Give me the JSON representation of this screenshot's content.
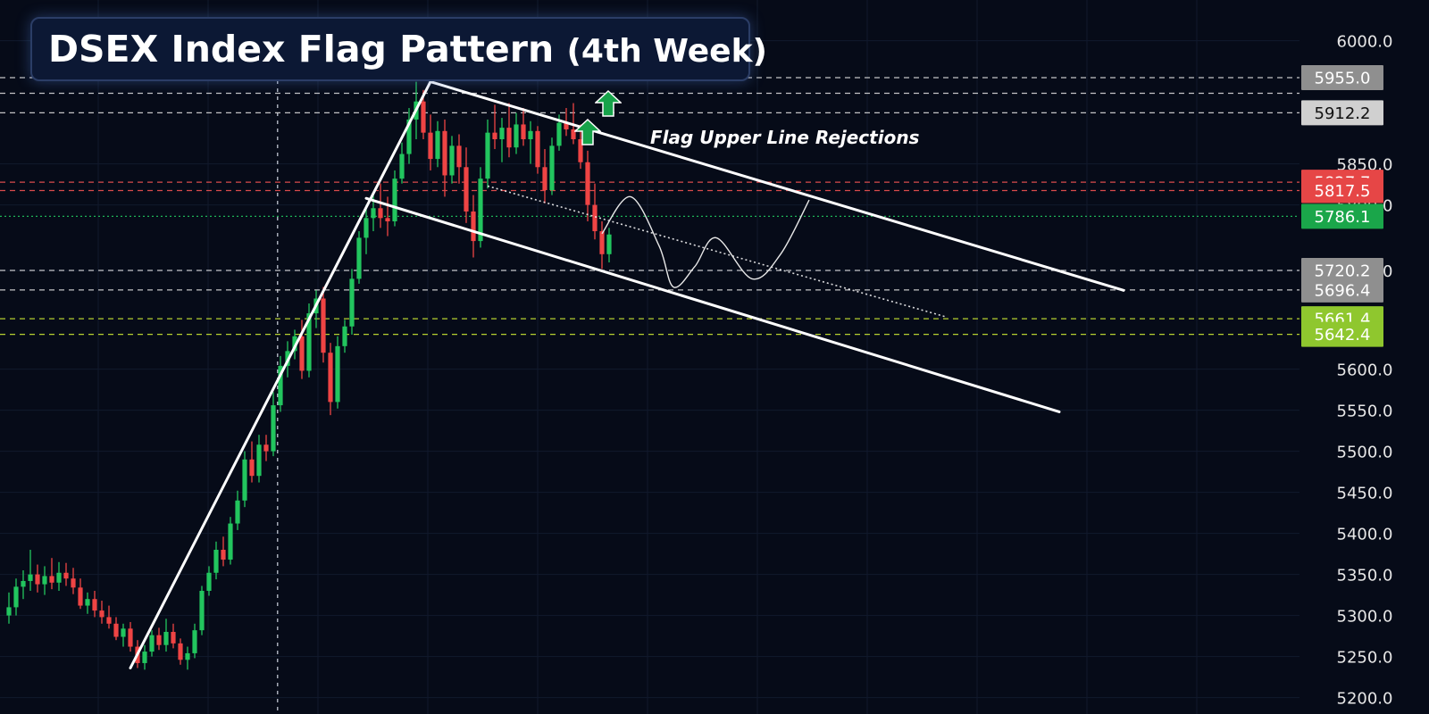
{
  "title": {
    "main": "DSEX Index Flag Pattern",
    "sub": "(4th Week)"
  },
  "annotation": "Flag Upper Line Rejections",
  "icons": {
    "arrow": "up-arrow-icon",
    "arrow_color": "#17a34a"
  },
  "colors": {
    "background": "#060b18",
    "bull": "#22c55e",
    "bear": "#ef4444",
    "white_lines": "#ffffff",
    "red_level": "#f05252",
    "green_level": "#22c55e",
    "yellow_level": "#c8e632",
    "gray_level": "#d9d9d9"
  },
  "chart_data": {
    "type": "candlestick",
    "title": "DSEX Index Flag Pattern (4th Week)",
    "ylim": [
      5180,
      6030
    ],
    "y_ticks": [
      5200,
      5250,
      5300,
      5350,
      5400,
      5450,
      5500,
      5550,
      5600,
      5720,
      5800,
      5850,
      6000
    ],
    "y_tick_labels": [
      "5200.0",
      "5250.0",
      "5300.0",
      "5350.0",
      "5400.0",
      "5450.0",
      "5500.0",
      "5550.0",
      "5600.0",
      "5720.0",
      "5800.0",
      "5850.0",
      "6000.0"
    ],
    "price_labels": [
      {
        "value": 5955.0,
        "text": "5955.0",
        "color": "#8f8f8f",
        "text_color": "#ffffff"
      },
      {
        "value": 5912.2,
        "text": "5912.2",
        "color": "#d0d0d0",
        "text_color": "#111111"
      },
      {
        "value": 5827.7,
        "text": "5827.7",
        "color": "#e64646",
        "text_color": "#ffffff"
      },
      {
        "value": 5817.5,
        "text": "5817.5",
        "color": "#e64646",
        "text_color": "#ffffff"
      },
      {
        "value": 5786.1,
        "text": "5786.1",
        "color": "#1aa64a",
        "text_color": "#ffffff"
      },
      {
        "value": 5720.2,
        "text": "5720.2",
        "color": "#8f8f8f",
        "text_color": "#ffffff"
      },
      {
        "value": 5696.4,
        "text": "5696.4",
        "color": "#8f8f8f",
        "text_color": "#ffffff"
      },
      {
        "value": 5661.4,
        "text": "5661.4",
        "color": "#8fc72e",
        "text_color": "#ffffff"
      },
      {
        "value": 5642.4,
        "text": "5642.4",
        "color": "#8fc72e",
        "text_color": "#ffffff"
      }
    ],
    "levels": [
      {
        "value": 5955.0,
        "style": "dashed",
        "color": "#d9d9d9"
      },
      {
        "value": 5936.0,
        "style": "dashed",
        "color": "#d9d9d9"
      },
      {
        "value": 5912.2,
        "style": "dashed",
        "color": "#d9d9d9"
      },
      {
        "value": 5827.7,
        "style": "dashed",
        "color": "#f05252"
      },
      {
        "value": 5817.5,
        "style": "dashed",
        "color": "#f05252"
      },
      {
        "value": 5786.1,
        "style": "dotted",
        "color": "#22c55e"
      },
      {
        "value": 5720.2,
        "style": "dashed",
        "color": "#d9d9d9"
      },
      {
        "value": 5696.4,
        "style": "dashed",
        "color": "#d9d9d9"
      },
      {
        "value": 5661.4,
        "style": "dashed",
        "color": "#c8e632"
      },
      {
        "value": 5642.4,
        "style": "dashed",
        "color": "#c8e632"
      }
    ],
    "candles": [
      {
        "o": 5300,
        "h": 5328,
        "l": 5290,
        "c": 5310
      },
      {
        "o": 5310,
        "h": 5345,
        "l": 5300,
        "c": 5335
      },
      {
        "o": 5335,
        "h": 5355,
        "l": 5320,
        "c": 5342
      },
      {
        "o": 5342,
        "h": 5380,
        "l": 5330,
        "c": 5350
      },
      {
        "o": 5350,
        "h": 5362,
        "l": 5328,
        "c": 5338
      },
      {
        "o": 5338,
        "h": 5360,
        "l": 5325,
        "c": 5348
      },
      {
        "o": 5348,
        "h": 5370,
        "l": 5332,
        "c": 5340
      },
      {
        "o": 5340,
        "h": 5365,
        "l": 5330,
        "c": 5352
      },
      {
        "o": 5352,
        "h": 5364,
        "l": 5336,
        "c": 5345
      },
      {
        "o": 5345,
        "h": 5358,
        "l": 5326,
        "c": 5334
      },
      {
        "o": 5334,
        "h": 5345,
        "l": 5308,
        "c": 5312
      },
      {
        "o": 5312,
        "h": 5328,
        "l": 5302,
        "c": 5320
      },
      {
        "o": 5320,
        "h": 5330,
        "l": 5298,
        "c": 5306
      },
      {
        "o": 5306,
        "h": 5318,
        "l": 5290,
        "c": 5298
      },
      {
        "o": 5298,
        "h": 5312,
        "l": 5284,
        "c": 5290
      },
      {
        "o": 5290,
        "h": 5298,
        "l": 5270,
        "c": 5274
      },
      {
        "o": 5274,
        "h": 5290,
        "l": 5262,
        "c": 5284
      },
      {
        "o": 5284,
        "h": 5292,
        "l": 5256,
        "c": 5262
      },
      {
        "o": 5262,
        "h": 5270,
        "l": 5236,
        "c": 5242
      },
      {
        "o": 5242,
        "h": 5264,
        "l": 5234,
        "c": 5256
      },
      {
        "o": 5256,
        "h": 5282,
        "l": 5250,
        "c": 5276
      },
      {
        "o": 5276,
        "h": 5285,
        "l": 5258,
        "c": 5264
      },
      {
        "o": 5264,
        "h": 5296,
        "l": 5256,
        "c": 5280
      },
      {
        "o": 5280,
        "h": 5290,
        "l": 5260,
        "c": 5266
      },
      {
        "o": 5266,
        "h": 5272,
        "l": 5240,
        "c": 5246
      },
      {
        "o": 5246,
        "h": 5262,
        "l": 5234,
        "c": 5254
      },
      {
        "o": 5254,
        "h": 5290,
        "l": 5248,
        "c": 5282
      },
      {
        "o": 5282,
        "h": 5336,
        "l": 5276,
        "c": 5330
      },
      {
        "o": 5330,
        "h": 5360,
        "l": 5324,
        "c": 5352
      },
      {
        "o": 5352,
        "h": 5390,
        "l": 5344,
        "c": 5380
      },
      {
        "o": 5380,
        "h": 5396,
        "l": 5360,
        "c": 5368
      },
      {
        "o": 5368,
        "h": 5420,
        "l": 5362,
        "c": 5412
      },
      {
        "o": 5412,
        "h": 5452,
        "l": 5404,
        "c": 5440
      },
      {
        "o": 5440,
        "h": 5500,
        "l": 5432,
        "c": 5490
      },
      {
        "o": 5490,
        "h": 5512,
        "l": 5462,
        "c": 5470
      },
      {
        "o": 5470,
        "h": 5520,
        "l": 5462,
        "c": 5508
      },
      {
        "o": 5508,
        "h": 5520,
        "l": 5488,
        "c": 5500
      },
      {
        "o": 5500,
        "h": 5572,
        "l": 5494,
        "c": 5556
      },
      {
        "o": 5556,
        "h": 5616,
        "l": 5548,
        "c": 5604
      },
      {
        "o": 5604,
        "h": 5634,
        "l": 5590,
        "c": 5622
      },
      {
        "o": 5622,
        "h": 5648,
        "l": 5612,
        "c": 5640
      },
      {
        "o": 5640,
        "h": 5660,
        "l": 5588,
        "c": 5598
      },
      {
        "o": 5598,
        "h": 5680,
        "l": 5590,
        "c": 5668
      },
      {
        "o": 5668,
        "h": 5696,
        "l": 5650,
        "c": 5686
      },
      {
        "o": 5686,
        "h": 5700,
        "l": 5608,
        "c": 5620
      },
      {
        "o": 5620,
        "h": 5632,
        "l": 5544,
        "c": 5560
      },
      {
        "o": 5560,
        "h": 5640,
        "l": 5552,
        "c": 5628
      },
      {
        "o": 5628,
        "h": 5660,
        "l": 5620,
        "c": 5652
      },
      {
        "o": 5652,
        "h": 5722,
        "l": 5642,
        "c": 5710
      },
      {
        "o": 5710,
        "h": 5768,
        "l": 5704,
        "c": 5760
      },
      {
        "o": 5760,
        "h": 5800,
        "l": 5740,
        "c": 5784
      },
      {
        "o": 5784,
        "h": 5812,
        "l": 5768,
        "c": 5796
      },
      {
        "o": 5796,
        "h": 5826,
        "l": 5772,
        "c": 5784
      },
      {
        "o": 5784,
        "h": 5810,
        "l": 5762,
        "c": 5780
      },
      {
        "o": 5780,
        "h": 5842,
        "l": 5774,
        "c": 5832
      },
      {
        "o": 5832,
        "h": 5876,
        "l": 5826,
        "c": 5862
      },
      {
        "o": 5862,
        "h": 5918,
        "l": 5850,
        "c": 5904
      },
      {
        "o": 5904,
        "h": 5950,
        "l": 5880,
        "c": 5926
      },
      {
        "o": 5926,
        "h": 5940,
        "l": 5880,
        "c": 5888
      },
      {
        "o": 5888,
        "h": 5910,
        "l": 5842,
        "c": 5856
      },
      {
        "o": 5856,
        "h": 5902,
        "l": 5846,
        "c": 5890
      },
      {
        "o": 5890,
        "h": 5904,
        "l": 5810,
        "c": 5836
      },
      {
        "o": 5836,
        "h": 5884,
        "l": 5826,
        "c": 5872
      },
      {
        "o": 5872,
        "h": 5886,
        "l": 5826,
        "c": 5846
      },
      {
        "o": 5846,
        "h": 5870,
        "l": 5778,
        "c": 5792
      },
      {
        "o": 5792,
        "h": 5812,
        "l": 5736,
        "c": 5756
      },
      {
        "o": 5756,
        "h": 5846,
        "l": 5748,
        "c": 5832
      },
      {
        "o": 5832,
        "h": 5904,
        "l": 5820,
        "c": 5888
      },
      {
        "o": 5888,
        "h": 5922,
        "l": 5868,
        "c": 5880
      },
      {
        "o": 5880,
        "h": 5906,
        "l": 5852,
        "c": 5894
      },
      {
        "o": 5894,
        "h": 5924,
        "l": 5858,
        "c": 5870
      },
      {
        "o": 5870,
        "h": 5912,
        "l": 5862,
        "c": 5898
      },
      {
        "o": 5898,
        "h": 5918,
        "l": 5872,
        "c": 5880
      },
      {
        "o": 5880,
        "h": 5902,
        "l": 5850,
        "c": 5890
      },
      {
        "o": 5890,
        "h": 5896,
        "l": 5838,
        "c": 5846
      },
      {
        "o": 5846,
        "h": 5868,
        "l": 5802,
        "c": 5818
      },
      {
        "o": 5818,
        "h": 5882,
        "l": 5812,
        "c": 5872
      },
      {
        "o": 5872,
        "h": 5910,
        "l": 5866,
        "c": 5900
      },
      {
        "o": 5900,
        "h": 5918,
        "l": 5884,
        "c": 5892
      },
      {
        "o": 5892,
        "h": 5924,
        "l": 5874,
        "c": 5880
      },
      {
        "o": 5880,
        "h": 5898,
        "l": 5844,
        "c": 5852
      },
      {
        "o": 5852,
        "h": 5866,
        "l": 5780,
        "c": 5800
      },
      {
        "o": 5800,
        "h": 5826,
        "l": 5758,
        "c": 5768
      },
      {
        "o": 5768,
        "h": 5780,
        "l": 5722,
        "c": 5740
      },
      {
        "o": 5740,
        "h": 5772,
        "l": 5730,
        "c": 5764
      }
    ],
    "trendlines": [
      {
        "from": [
          17,
          5236
        ],
        "to": [
          59,
          5950
        ],
        "style": "solid"
      },
      {
        "from": [
          59,
          5950
        ],
        "to": [
          156,
          5696
        ],
        "style": "solid"
      },
      {
        "from": [
          50,
          5808
        ],
        "to": [
          147,
          5548
        ],
        "style": "solid"
      },
      {
        "from": [
          67,
          5823
        ],
        "to": [
          131,
          5664
        ],
        "style": "dotted"
      }
    ],
    "projection_path": [
      [
        83,
        5765
      ],
      [
        87,
        5810
      ],
      [
        91,
        5750
      ],
      [
        93,
        5700
      ],
      [
        96,
        5725
      ],
      [
        99,
        5760
      ],
      [
        104,
        5710
      ],
      [
        108,
        5740
      ],
      [
        112,
        5806
      ]
    ],
    "vertical_marker": 37.6
  }
}
